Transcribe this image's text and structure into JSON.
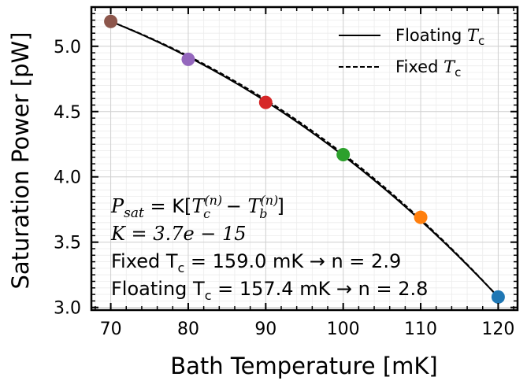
{
  "chart_data": {
    "type": "scatter",
    "xlabel": "Bath Temperature [mK]",
    "ylabel": "Saturation Power [pW]",
    "xlim": [
      67.5,
      122.5
    ],
    "ylim": [
      2.98,
      5.3
    ],
    "xticks": [
      "70",
      "80",
      "90",
      "100",
      "110",
      "120"
    ],
    "yticks": [
      "3.0",
      "3.5",
      "4.0",
      "4.5",
      "5.0"
    ],
    "grid": true,
    "legend_position": "top-right",
    "points": [
      {
        "x": 70,
        "y": 5.19,
        "color": "#8c564b"
      },
      {
        "x": 80,
        "y": 4.9,
        "color": "#9467bd"
      },
      {
        "x": 90,
        "y": 4.57,
        "color": "#d62728"
      },
      {
        "x": 100,
        "y": 4.17,
        "color": "#2ca02c"
      },
      {
        "x": 110,
        "y": 3.69,
        "color": "#ff7f0e"
      },
      {
        "x": 120,
        "y": 3.08,
        "color": "#1f77b4"
      }
    ],
    "series": [
      {
        "name": "Floating T_c",
        "style": "solid",
        "K": 3.7e-15,
        "Tc": 157.4,
        "n": 2.8
      },
      {
        "name": "Fixed T_c",
        "style": "dashed",
        "K": 3.7e-15,
        "Tc": 159.0,
        "n": 2.9
      }
    ],
    "legend": {
      "floating": "Floating",
      "fixed": "Fixed",
      "T": "T",
      "c": "c"
    },
    "annotation": {
      "lhs_P": "P",
      "lhs_sub": "sat",
      "eq": " = K[",
      "Tc_T": "T",
      "Tc_sub": "c",
      "Tc_sup": "(n)",
      "minus": " − ",
      "Tb_T": "T",
      "Tb_sub": "b",
      "Tb_sup": "(n)",
      "close": "]",
      "k_line": "K = 3.7e − 15",
      "fixed_a": "Fixed T",
      "fixed_sub": "c",
      "fixed_b": " = 159.0 mK → n = 2.9",
      "floating_a": "Floating T",
      "floating_sub": "c",
      "floating_b": " = 157.4 mK → n = 2.8"
    }
  }
}
